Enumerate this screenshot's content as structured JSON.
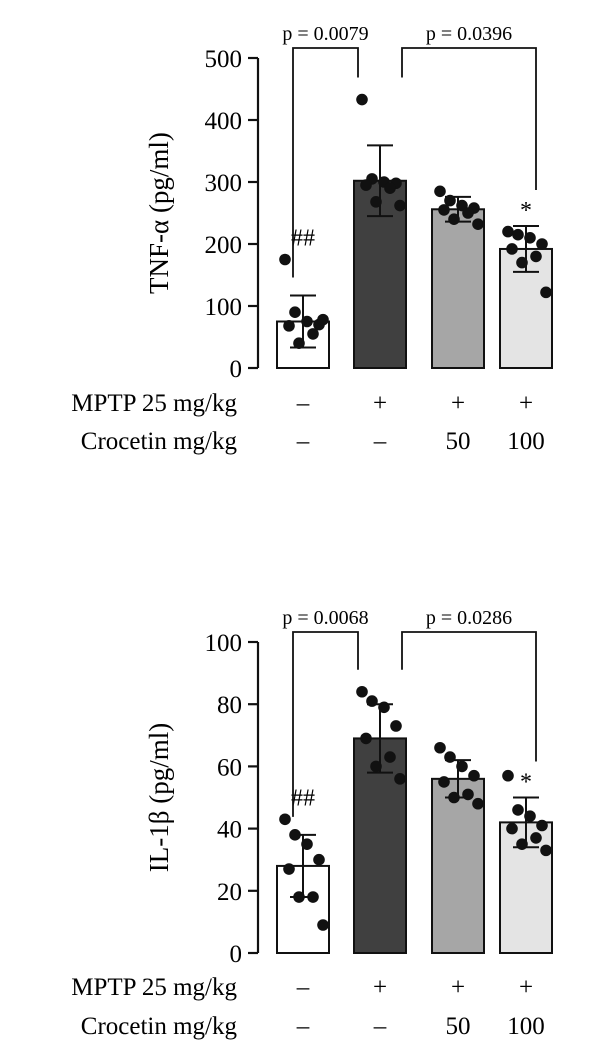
{
  "chart_data": [
    {
      "type": "bar",
      "ylabel": "TNF-α (pg/ml)",
      "ylim": [
        0,
        500
      ],
      "yticks": [
        0,
        100,
        200,
        300,
        400,
        500
      ],
      "groups": [
        {
          "mptp": "–",
          "crocetin": "–",
          "mean": 75,
          "sd": 42,
          "fill": "#ffffff",
          "points": [
            175,
            90,
            75,
            70,
            68,
            55,
            40,
            78
          ]
        },
        {
          "mptp": "+",
          "crocetin": "–",
          "mean": 302,
          "sd": 57,
          "fill": "#404040",
          "points": [
            433,
            305,
            300,
            298,
            295,
            290,
            268,
            262
          ]
        },
        {
          "mptp": "+",
          "crocetin": "50",
          "mean": 256,
          "sd": 20,
          "fill": "#a6a6a6",
          "points": [
            285,
            270,
            262,
            258,
            255,
            250,
            240,
            232
          ]
        },
        {
          "mptp": "+",
          "crocetin": "100",
          "mean": 192,
          "sd": 37,
          "fill": "#e4e4e4",
          "points": [
            220,
            215,
            210,
            200,
            192,
            180,
            170,
            122
          ]
        }
      ],
      "sig_marks": [
        "##",
        "",
        "",
        "*"
      ],
      "brackets": [
        {
          "from": 0,
          "to": 1,
          "label": "p = 0.0079"
        },
        {
          "from": 1,
          "to": 3,
          "label": "p = 0.0396"
        }
      ],
      "row_labels": {
        "mptp": "MPTP 25 mg/kg",
        "crocetin": "Crocetin mg/kg"
      }
    },
    {
      "type": "bar",
      "ylabel": "IL-1β (pg/ml)",
      "ylim": [
        0,
        100
      ],
      "yticks": [
        0,
        20,
        40,
        60,
        80,
        100
      ],
      "groups": [
        {
          "mptp": "–",
          "crocetin": "–",
          "mean": 28,
          "sd": 10,
          "fill": "#ffffff",
          "points": [
            43,
            38,
            35,
            30,
            27,
            18,
            18,
            9
          ]
        },
        {
          "mptp": "+",
          "crocetin": "–",
          "mean": 69,
          "sd": 11,
          "fill": "#404040",
          "points": [
            84,
            81,
            79,
            73,
            69,
            63,
            60,
            56
          ]
        },
        {
          "mptp": "+",
          "crocetin": "50",
          "mean": 56,
          "sd": 6,
          "fill": "#a6a6a6",
          "points": [
            66,
            63,
            60,
            57,
            55,
            51,
            50,
            48
          ]
        },
        {
          "mptp": "+",
          "crocetin": "100",
          "mean": 42,
          "sd": 8,
          "fill": "#e4e4e4",
          "points": [
            57,
            46,
            44,
            41,
            40,
            37,
            35,
            33
          ]
        }
      ],
      "sig_marks": [
        "##",
        "",
        "",
        "*"
      ],
      "brackets": [
        {
          "from": 0,
          "to": 1,
          "label": "p = 0.0068"
        },
        {
          "from": 1,
          "to": 3,
          "label": "p = 0.0286"
        }
      ],
      "row_labels": {
        "mptp": "MPTP 25 mg/kg",
        "crocetin": "Crocetin mg/kg"
      }
    }
  ]
}
